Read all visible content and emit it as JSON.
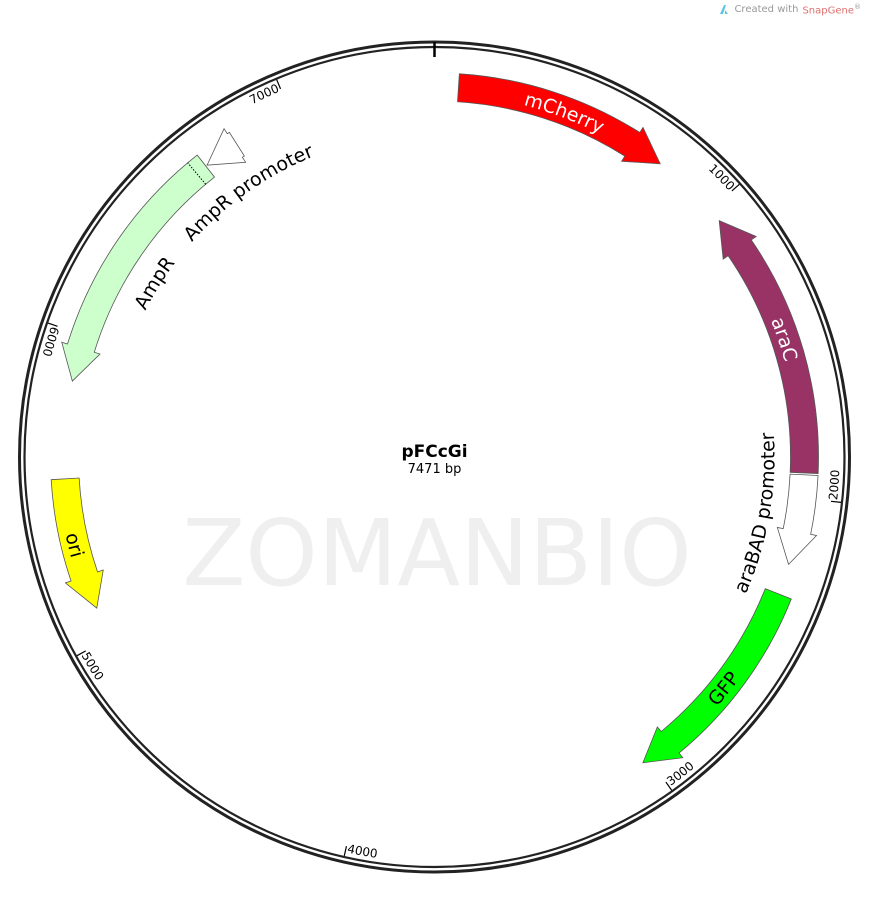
{
  "credit": {
    "prefix": "Created with",
    "brand": "SnapGene",
    "suffix": "®",
    "logo_icon": "snapgene-logo-icon"
  },
  "plasmid": {
    "name": "pFCcGi",
    "length_label": "7471 bp",
    "length_bp": 7471
  },
  "watermark": "ZOMANBIO",
  "ticks": [
    {
      "bp": 1000,
      "label": "1000"
    },
    {
      "bp": 2000,
      "label": "2000"
    },
    {
      "bp": 3000,
      "label": "3000"
    },
    {
      "bp": 4000,
      "label": "4000"
    },
    {
      "bp": 5000,
      "label": "5000"
    },
    {
      "bp": 6000,
      "label": "6000"
    },
    {
      "bp": 7000,
      "label": "7000"
    }
  ],
  "features": [
    {
      "name": "mCherry",
      "start": 77,
      "end": 780,
      "strand": "+",
      "color": "#ff0000",
      "label_color": "#ffffff"
    },
    {
      "name": "araC",
      "start": 1044,
      "end": 1919,
      "strand": "-",
      "color": "#993366",
      "label_color": "#ffffff"
    },
    {
      "name": "araBAD promoter",
      "start": 1925,
      "end": 2218,
      "strand": "+",
      "color": "#ffffff",
      "label_color": "#000000"
    },
    {
      "name": "GFP",
      "start": 2318,
      "end": 3024,
      "strand": "+",
      "color": "#00ff00",
      "label_color": "#000000"
    },
    {
      "name": "ori",
      "start": 5103,
      "end": 5533,
      "strand": "-",
      "color": "#ffff00",
      "label_color": "#000000"
    },
    {
      "name": "AmpR",
      "start": 5849,
      "end": 6679,
      "strand": "-",
      "color": "#ccffcc",
      "label_color": "#000000"
    },
    {
      "name": "AmpR promoter",
      "start": 6684,
      "end": 6801,
      "strand": "-",
      "color": "#ffffff",
      "label_color": "#000000"
    }
  ],
  "colors": {
    "backbone": "#222222",
    "outline": "#555555",
    "watermark": "#efefef"
  }
}
